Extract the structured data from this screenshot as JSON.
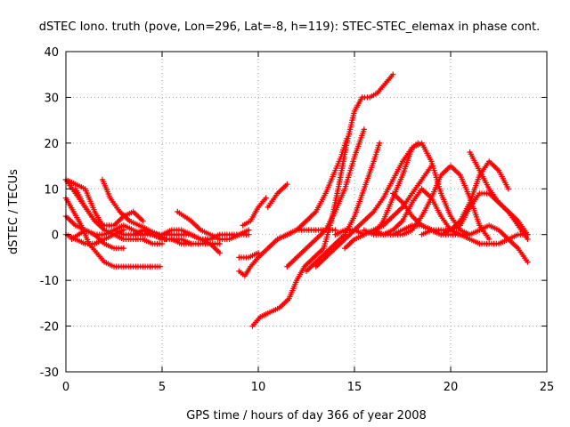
{
  "chart_data": {
    "type": "scatter",
    "title": "dSTEC Iono. truth (pove, Lon=296, Lat=-8, h=119): STEC-STEC_elemax in phase cont.",
    "xlabel": "GPS time / hours of day 366 of year 2008",
    "ylabel": "dSTEC  / TECUs",
    "xlim": [
      0,
      25
    ],
    "ylim": [
      -30,
      40
    ],
    "xticks": [
      "0",
      "5",
      "10",
      "15",
      "20",
      "25"
    ],
    "yticks": [
      "-30",
      "-20",
      "-10",
      "0",
      "10",
      "20",
      "30",
      "40"
    ],
    "grid": true,
    "marker": "+",
    "series_color": "#ff0000",
    "series": [
      {
        "x": [
          0.0,
          0.5,
          1.0,
          1.5,
          1.9
        ],
        "y": [
          12,
          11,
          10,
          5,
          2
        ]
      },
      {
        "x": [
          0.0,
          0.4,
          0.8,
          1.2,
          1.6,
          2.0,
          2.5,
          3.0,
          3.5,
          4.0,
          4.5,
          4.9
        ],
        "y": [
          8,
          5,
          2,
          -2,
          -4,
          -6,
          -7,
          -7,
          -7,
          -7,
          -7,
          -7
        ]
      },
      {
        "x": [
          0.0,
          0.5,
          1.0,
          1.5,
          2.0,
          2.5,
          3.0,
          3.5,
          4.0
        ],
        "y": [
          12,
          9,
          6,
          3,
          2,
          2,
          4,
          5,
          3
        ]
      },
      {
        "x": [
          0.0,
          0.5,
          1.0,
          1.5,
          2.0,
          2.5,
          3.0,
          3.5,
          4.0
        ],
        "y": [
          4,
          2,
          1,
          0,
          0,
          1,
          2,
          1,
          0
        ]
      },
      {
        "x": [
          0.0,
          0.5,
          1.0,
          1.5,
          2.0,
          2.5,
          3.0
        ],
        "y": [
          0,
          -1,
          -2,
          -2,
          -1,
          0,
          1
        ]
      },
      {
        "x": [
          0.5,
          1.0,
          1.5,
          2.0,
          2.5,
          3.0,
          3.5,
          4.0,
          4.5,
          5.0
        ],
        "y": [
          10,
          6,
          3,
          1,
          0,
          -1,
          -1,
          -1,
          -2,
          -2
        ]
      },
      {
        "x": [
          1.9,
          2.3,
          2.8,
          3.3,
          3.8,
          4.3,
          4.8,
          5.2
        ],
        "y": [
          12,
          8,
          5,
          3,
          2,
          1,
          0,
          -1
        ]
      },
      {
        "x": [
          0.3,
          1.0,
          1.5,
          2.0,
          2.5,
          3.0
        ],
        "y": [
          -1,
          1,
          0,
          -2,
          -3,
          -3
        ]
      },
      {
        "x": [
          2.5,
          3.0,
          3.5,
          4.0,
          4.5,
          5.0,
          5.5,
          6.0,
          6.5,
          7.0,
          7.5
        ],
        "y": [
          1,
          0,
          0,
          0,
          0,
          0,
          0,
          0,
          0,
          -1,
          -1
        ]
      },
      {
        "x": [
          3.5,
          4.0,
          4.5,
          5.0,
          5.5,
          6.0,
          6.5
        ],
        "y": [
          0,
          1,
          0,
          -1,
          -1,
          -1,
          -2
        ]
      },
      {
        "x": [
          4.0,
          4.5,
          5.0,
          5.5,
          6.0,
          6.5,
          7.0,
          7.5,
          8.0
        ],
        "y": [
          1,
          0,
          -1,
          -1,
          -2,
          -2,
          -2,
          -2,
          -2
        ]
      },
      {
        "x": [
          5.8,
          6.5,
          7.0,
          7.5,
          8.0,
          8.5,
          9.0,
          9.5
        ],
        "y": [
          5,
          3,
          1,
          0,
          -1,
          -1,
          0,
          0
        ]
      },
      {
        "x": [
          5.0,
          5.5,
          6.0,
          6.5,
          7.0,
          7.5,
          8.0
        ],
        "y": [
          0,
          1,
          1,
          0,
          -1,
          -2,
          -4
        ]
      },
      {
        "x": [
          7.0,
          7.5,
          8.0,
          8.5,
          9.0,
          9.5
        ],
        "y": [
          -1,
          -1,
          0,
          0,
          0,
          1
        ]
      },
      {
        "x": [
          9.2,
          9.6,
          10.0,
          10.4
        ],
        "y": [
          2,
          3,
          6,
          8
        ]
      },
      {
        "x": [
          9.0,
          9.5,
          10.0
        ],
        "y": [
          -5,
          -5,
          -4
        ]
      },
      {
        "x": [
          9.0,
          9.3,
          9.6,
          10.0,
          10.5,
          11.0,
          11.5,
          12.0,
          12.5,
          13.0,
          13.5,
          14.0
        ],
        "y": [
          -8,
          -9,
          -7,
          -5,
          -3,
          -1,
          0,
          1,
          1,
          1,
          1,
          1
        ]
      },
      {
        "x": [
          10.5,
          11.0,
          11.5
        ],
        "y": [
          6,
          9,
          11
        ]
      },
      {
        "x": [
          9.7,
          10.1,
          10.6,
          11.1,
          11.6,
          12.0,
          12.4,
          12.9,
          13.4,
          13.8,
          14.2,
          14.6,
          15.0,
          15.4,
          15.8,
          16.2,
          16.6,
          17.0
        ],
        "y": [
          -20,
          -18,
          -17,
          -16,
          -14,
          -10,
          -7,
          -5,
          -3,
          3,
          11,
          20,
          27,
          30,
          30,
          31,
          33,
          35
        ]
      },
      {
        "x": [
          11.0,
          11.5,
          12.0,
          12.5,
          13.0,
          13.5,
          14.0,
          14.3,
          14.6
        ],
        "y": [
          -1,
          0,
          1,
          3,
          5,
          9,
          14,
          17,
          21
        ]
      },
      {
        "x": [
          11.5,
          12.0,
          12.5,
          13.0,
          13.5,
          14.0,
          14.5,
          15.0,
          15.5
        ],
        "y": [
          -7,
          -5,
          -3,
          -1,
          1,
          5,
          10,
          17,
          23
        ]
      },
      {
        "x": [
          12.5,
          13.0,
          13.5,
          14.0,
          14.5,
          15.0,
          15.5,
          16.0,
          16.3
        ],
        "y": [
          -8,
          -6,
          -4,
          -2,
          0,
          4,
          10,
          16,
          20
        ]
      },
      {
        "x": [
          13.0,
          13.5,
          14.0,
          14.5,
          15.0,
          15.5,
          16.0,
          16.5,
          17.0,
          17.5,
          18.0,
          18.3
        ],
        "y": [
          -7,
          -5,
          -3,
          -1,
          1,
          3,
          5,
          8,
          12,
          16,
          19,
          20
        ]
      },
      {
        "x": [
          14.0,
          14.5,
          15.0,
          15.5,
          16.0,
          16.5,
          17.0,
          17.5,
          18.0,
          18.5,
          19.0
        ],
        "y": [
          0,
          1,
          1,
          0,
          1,
          2,
          4,
          6,
          9,
          12,
          15
        ]
      },
      {
        "x": [
          14.5,
          15.0,
          15.5,
          16.0,
          16.5,
          17.0,
          17.5,
          18.0,
          18.5,
          19.0,
          19.5,
          20.0,
          20.5,
          21.0,
          21.5,
          22.0
        ],
        "y": [
          -3,
          -1,
          0,
          1,
          0,
          0,
          0,
          1,
          4,
          8,
          13,
          15,
          13,
          8,
          2,
          -1
        ]
      },
      {
        "x": [
          15.5,
          16.0,
          16.5,
          17.0,
          17.5,
          18.0,
          18.5,
          19.0,
          19.5,
          20.0,
          20.5,
          21.0,
          21.5,
          22.0,
          22.5,
          23.0,
          23.5,
          24.0
        ],
        "y": [
          1,
          0,
          0,
          1,
          3,
          7,
          10,
          8,
          4,
          1,
          0,
          0,
          1,
          2,
          1,
          -1,
          -3,
          -6
        ]
      },
      {
        "x": [
          16.0,
          16.5,
          17.0,
          17.5,
          18.0,
          18.5,
          19.0,
          19.5,
          20.0,
          20.5,
          21.0
        ],
        "y": [
          0,
          3,
          8,
          13,
          19,
          20,
          16,
          9,
          4,
          1,
          0
        ]
      },
      {
        "x": [
          17.0,
          17.5,
          18.0,
          18.5,
          19.0,
          19.5,
          20.0,
          20.5,
          21.0,
          21.5,
          22.0,
          22.5,
          23.0
        ],
        "y": [
          9,
          7,
          4,
          2,
          1,
          0,
          1,
          3,
          7,
          13,
          16,
          14,
          10
        ]
      },
      {
        "x": [
          17.0,
          17.5,
          18.0,
          18.5,
          19.0,
          19.5,
          20.0,
          20.5,
          21.0,
          21.5,
          22.0,
          22.5,
          23.0,
          23.5,
          24.0
        ],
        "y": [
          0,
          1,
          2,
          2,
          1,
          0,
          0,
          0,
          -1,
          -2,
          -2,
          -2,
          -1,
          0,
          0
        ]
      },
      {
        "x": [
          18.5,
          19.0,
          19.5,
          20.0,
          20.5,
          21.0,
          21.5,
          22.0,
          22.5,
          23.0,
          23.5,
          24.0
        ],
        "y": [
          0,
          1,
          1,
          1,
          2,
          6,
          9,
          9,
          7,
          5,
          2,
          -1
        ]
      },
      {
        "x": [
          21.0,
          21.5,
          22.0,
          22.5,
          23.0,
          23.5,
          24.0
        ],
        "y": [
          18,
          14,
          10,
          7,
          5,
          3,
          0
        ]
      }
    ]
  }
}
